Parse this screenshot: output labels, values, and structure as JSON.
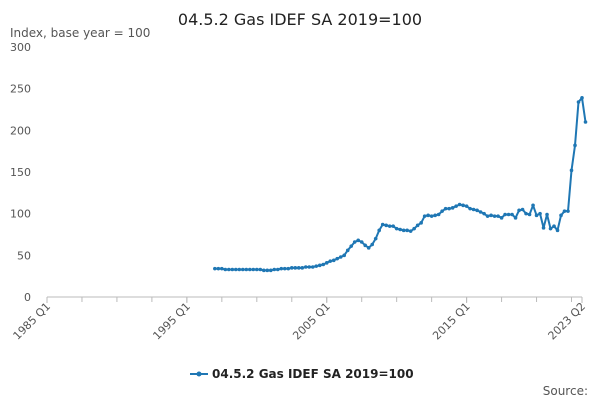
{
  "chart_data": {
    "type": "line",
    "title": "04.5.2 Gas IDEF SA 2019=100",
    "ylabel": "Index, base year = 100",
    "source_label": "Source:",
    "ylim": [
      0,
      300
    ],
    "yticks": [
      0,
      50,
      100,
      150,
      200,
      250,
      300
    ],
    "xlim": [
      1985,
      2023.25
    ],
    "xticks": [
      {
        "label": "1985 Q1",
        "value": 1985
      },
      {
        "label": "1995 Q1",
        "value": 1995
      },
      {
        "label": "2005 Q1",
        "value": 2005
      },
      {
        "label": "2015 Q1",
        "value": 2015
      },
      {
        "label": "2023 Q2",
        "value": 2023.25
      }
    ],
    "grid": false,
    "legend": "bottom",
    "colors": {
      "series": "#1f77b4",
      "axis": "#bbbbbb",
      "text": "#333333"
    },
    "series": [
      {
        "name": "04.5.2 Gas IDEF SA 2019=100",
        "points": [
          [
            1997.0,
            34
          ],
          [
            1997.25,
            34
          ],
          [
            1997.5,
            34
          ],
          [
            1997.75,
            33
          ],
          [
            1998.0,
            33
          ],
          [
            1998.25,
            33
          ],
          [
            1998.5,
            33
          ],
          [
            1998.75,
            33
          ],
          [
            1999.0,
            33
          ],
          [
            1999.25,
            33
          ],
          [
            1999.5,
            33
          ],
          [
            1999.75,
            33
          ],
          [
            2000.0,
            33
          ],
          [
            2000.25,
            33
          ],
          [
            2000.5,
            32
          ],
          [
            2000.75,
            32
          ],
          [
            2001.0,
            32
          ],
          [
            2001.25,
            33
          ],
          [
            2001.5,
            33
          ],
          [
            2001.75,
            34
          ],
          [
            2002.0,
            34
          ],
          [
            2002.25,
            34
          ],
          [
            2002.5,
            35
          ],
          [
            2002.75,
            35
          ],
          [
            2003.0,
            35
          ],
          [
            2003.25,
            35
          ],
          [
            2003.5,
            36
          ],
          [
            2003.75,
            36
          ],
          [
            2004.0,
            36
          ],
          [
            2004.25,
            37
          ],
          [
            2004.5,
            38
          ],
          [
            2004.75,
            39
          ],
          [
            2005.0,
            41
          ],
          [
            2005.25,
            43
          ],
          [
            2005.5,
            44
          ],
          [
            2005.75,
            46
          ],
          [
            2006.0,
            48
          ],
          [
            2006.25,
            50
          ],
          [
            2006.5,
            56
          ],
          [
            2006.75,
            61
          ],
          [
            2007.0,
            66
          ],
          [
            2007.25,
            68
          ],
          [
            2007.5,
            66
          ],
          [
            2007.75,
            62
          ],
          [
            2008.0,
            59
          ],
          [
            2008.25,
            63
          ],
          [
            2008.5,
            70
          ],
          [
            2008.75,
            80
          ],
          [
            2009.0,
            87
          ],
          [
            2009.25,
            86
          ],
          [
            2009.5,
            85
          ],
          [
            2009.75,
            85
          ],
          [
            2010.0,
            82
          ],
          [
            2010.25,
            81
          ],
          [
            2010.5,
            80
          ],
          [
            2010.75,
            80
          ],
          [
            2011.0,
            79
          ],
          [
            2011.25,
            82
          ],
          [
            2011.5,
            86
          ],
          [
            2011.75,
            89
          ],
          [
            2012.0,
            97
          ],
          [
            2012.25,
            98
          ],
          [
            2012.5,
            97
          ],
          [
            2012.75,
            98
          ],
          [
            2013.0,
            99
          ],
          [
            2013.25,
            103
          ],
          [
            2013.5,
            106
          ],
          [
            2013.75,
            106
          ],
          [
            2014.0,
            107
          ],
          [
            2014.25,
            109
          ],
          [
            2014.5,
            111
          ],
          [
            2014.75,
            110
          ],
          [
            2015.0,
            109
          ],
          [
            2015.25,
            106
          ],
          [
            2015.5,
            105
          ],
          [
            2015.75,
            104
          ],
          [
            2016.0,
            102
          ],
          [
            2016.25,
            100
          ],
          [
            2016.5,
            97
          ],
          [
            2016.75,
            98
          ],
          [
            2017.0,
            97
          ],
          [
            2017.25,
            97
          ],
          [
            2017.5,
            95
          ],
          [
            2017.75,
            99
          ],
          [
            2018.0,
            99
          ],
          [
            2018.25,
            99
          ],
          [
            2018.5,
            95
          ],
          [
            2018.75,
            104
          ],
          [
            2019.0,
            105
          ],
          [
            2019.25,
            100
          ],
          [
            2019.5,
            99
          ],
          [
            2019.75,
            110
          ],
          [
            2020.0,
            98
          ],
          [
            2020.25,
            100
          ],
          [
            2020.5,
            83
          ],
          [
            2020.75,
            99
          ],
          [
            2021.0,
            82
          ],
          [
            2021.25,
            85
          ],
          [
            2021.5,
            80
          ],
          [
            2021.75,
            98
          ],
          [
            2022.0,
            103
          ],
          [
            2022.25,
            103
          ],
          [
            2022.5,
            152
          ],
          [
            2022.75,
            182
          ],
          [
            2023.0,
            234
          ],
          [
            2023.25,
            239
          ],
          [
            2023.5,
            210
          ]
        ]
      }
    ]
  }
}
